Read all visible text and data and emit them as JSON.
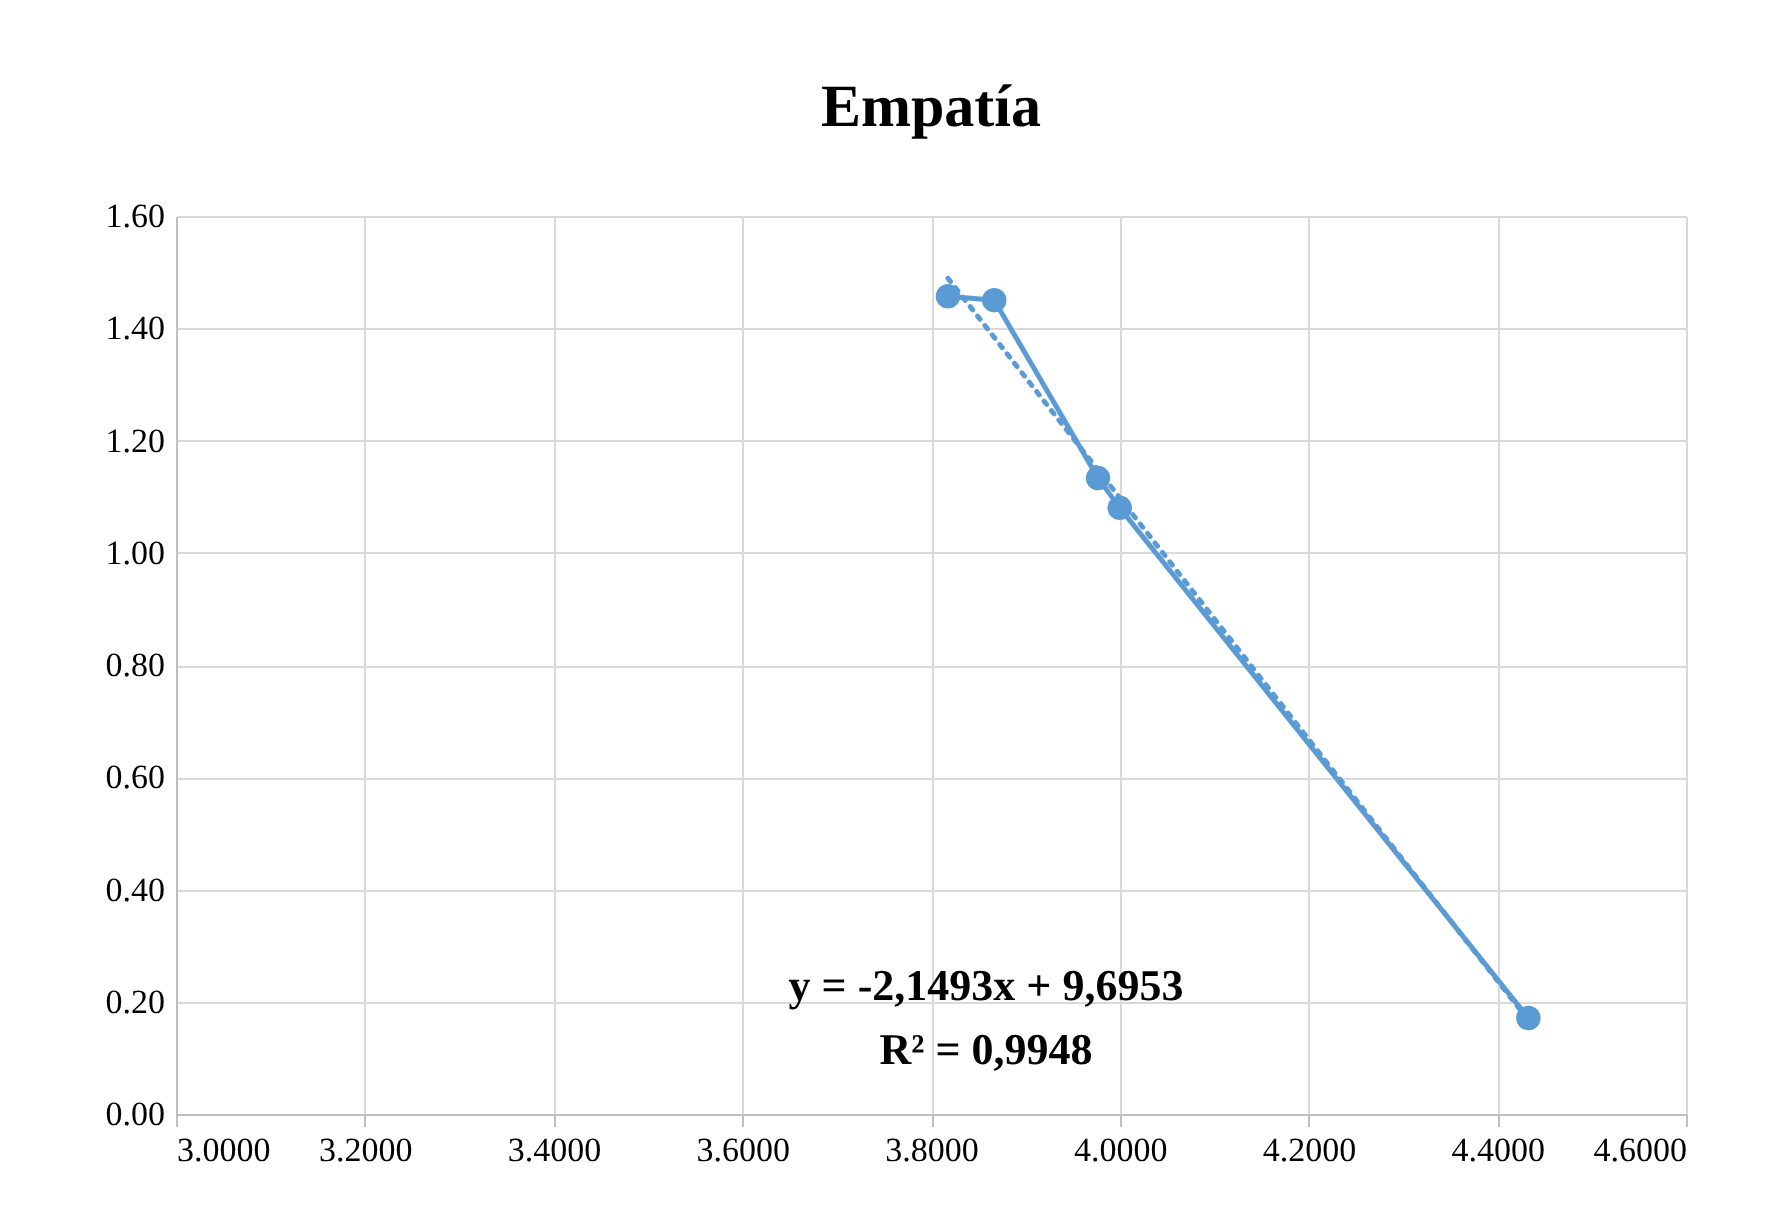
{
  "chart_data": {
    "type": "line",
    "title": "Empatía",
    "series": [
      {
        "color": "#5b9bd5",
        "x": [
          3.818,
          3.867,
          3.977,
          4.0,
          4.433
        ],
        "values": [
          1.457,
          1.45,
          1.133,
          1.08,
          0.171
        ],
        "marker": "circle",
        "line_style": "solid"
      },
      {
        "type": "line",
        "color": "#5b9bd5",
        "x": [
          3.818,
          4.433
        ],
        "values": [
          1.489,
          0.167
        ],
        "marker": "none",
        "line_style": "dotted"
      }
    ],
    "xlim": [
      3.0,
      4.6
    ],
    "xticks": [
      {
        "value": 3.0,
        "label": "3.0000"
      },
      {
        "value": 3.2,
        "label": "3.2000"
      },
      {
        "value": 3.4,
        "label": "3.4000"
      },
      {
        "value": 3.6,
        "label": "3.6000"
      },
      {
        "value": 3.8,
        "label": "3.8000"
      },
      {
        "value": 4.0,
        "label": "4.0000"
      },
      {
        "value": 4.2,
        "label": "4.2000"
      },
      {
        "value": 4.4,
        "label": "4.4000"
      },
      {
        "value": 4.6,
        "label": "4.6000"
      }
    ],
    "ylim": [
      0,
      1.6
    ],
    "yticks": [
      {
        "value": 0,
        "label": "0.00"
      },
      {
        "value": 0.2,
        "label": "0.20"
      },
      {
        "value": 0.4,
        "label": "0.40"
      },
      {
        "value": 0.6,
        "label": "0.60"
      },
      {
        "value": 0.8,
        "label": "0.80"
      },
      {
        "value": 1.0,
        "label": "1.00"
      },
      {
        "value": 1.2,
        "label": "1.20"
      },
      {
        "value": 1.4,
        "label": "1.40"
      },
      {
        "value": 1.6,
        "label": "1.60"
      }
    ],
    "annotations": [
      "y = -2,1493x + 9,6953",
      "R² = 0,9948"
    ],
    "grid": true
  }
}
